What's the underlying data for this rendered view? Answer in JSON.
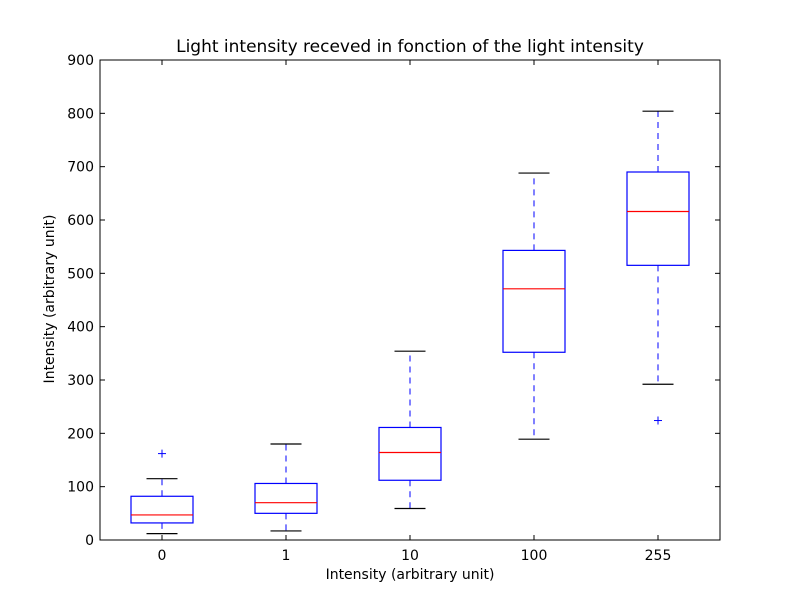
{
  "chart_data": {
    "type": "boxplot",
    "title": "Light intensity receved in fonction of the light intensity",
    "xlabel": "Intensity (arbitrary unit)",
    "ylabel": "Intensity (arbitrary unit)",
    "ylim": [
      0,
      900
    ],
    "yticks": [
      0,
      100,
      200,
      300,
      400,
      500,
      600,
      700,
      800,
      900
    ],
    "grid": false,
    "categories": [
      "0",
      "1",
      "10",
      "100",
      "255"
    ],
    "boxes": [
      {
        "category": "0",
        "whisker_low": 12,
        "q1": 32,
        "median": 47,
        "q3": 82,
        "whisker_high": 115,
        "outliers": [
          162
        ]
      },
      {
        "category": "1",
        "whisker_low": 17,
        "q1": 50,
        "median": 70,
        "q3": 106,
        "whisker_high": 180,
        "outliers": []
      },
      {
        "category": "10",
        "whisker_low": 59,
        "q1": 112,
        "median": 164,
        "q3": 211,
        "whisker_high": 354,
        "outliers": []
      },
      {
        "category": "100",
        "whisker_low": 189,
        "q1": 352,
        "median": 471,
        "q3": 543,
        "whisker_high": 688,
        "outliers": []
      },
      {
        "category": "255",
        "whisker_low": 292,
        "q1": 515,
        "median": 616,
        "q3": 690,
        "whisker_high": 804,
        "outliers": [
          224
        ]
      }
    ],
    "colors": {
      "box": "#0000ff",
      "median": "#ff0000",
      "whisker": "#0000ff",
      "cap": "#000000",
      "outlier": "#0000ff"
    }
  }
}
